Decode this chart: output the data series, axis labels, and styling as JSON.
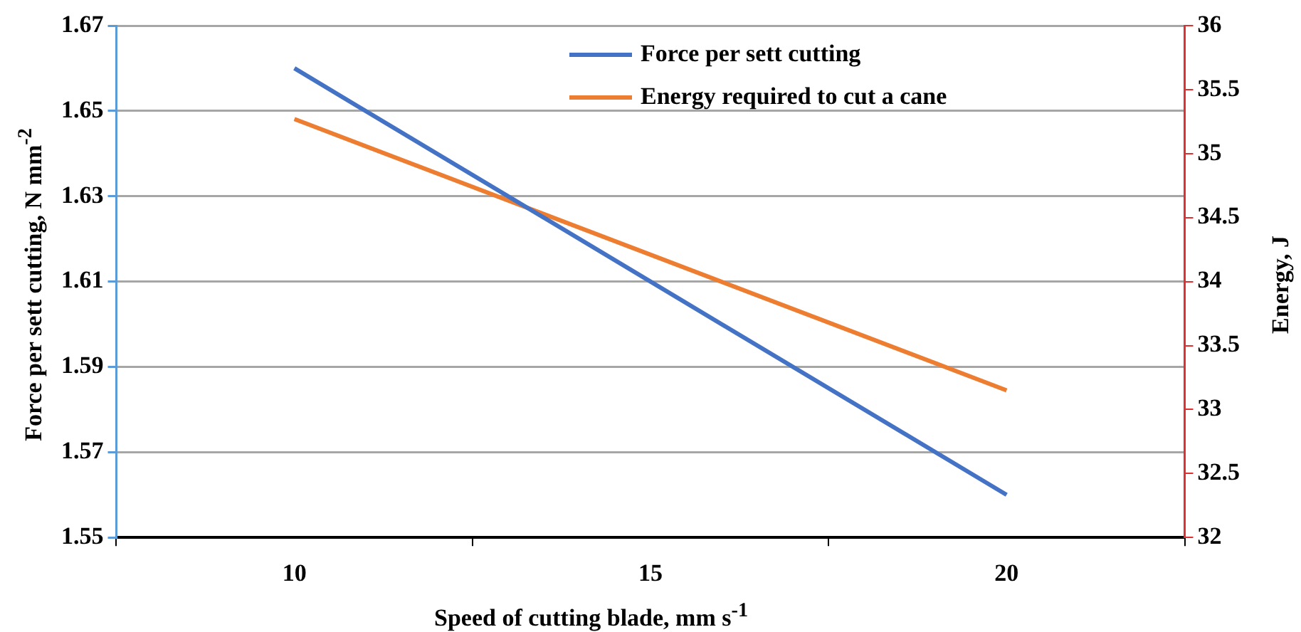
{
  "chart_data": {
    "type": "line",
    "xlabel": "Speed of cutting blade, mm s$^{-1}$",
    "ylabel": "Force per sett cutting, N mm$^{-2}$",
    "y2label": "Energy, J",
    "categories": [
      "10",
      "15",
      "20"
    ],
    "series": [
      {
        "name": "Force per sett cutting",
        "color": "#4472c4",
        "values": [
          1.66,
          1.61,
          1.56
        ]
      },
      {
        "name": "Energy required to cut a cane",
        "color": "#ed7d31",
        "values": [
          35.27,
          34.21,
          33.15
        ],
        "axis": "y2"
      }
    ],
    "ylim": [
      1.55,
      1.67
    ],
    "yticks": [
      1.55,
      1.57,
      1.59,
      1.61,
      1.63,
      1.65,
      1.67
    ],
    "y2lim": [
      32,
      36
    ],
    "y2ticks": [
      32,
      32.5,
      33,
      33.5,
      34,
      34.5,
      35,
      35.5,
      36
    ],
    "grid": "y",
    "legend": "top right",
    "marker": "none",
    "line_style": "solid"
  }
}
